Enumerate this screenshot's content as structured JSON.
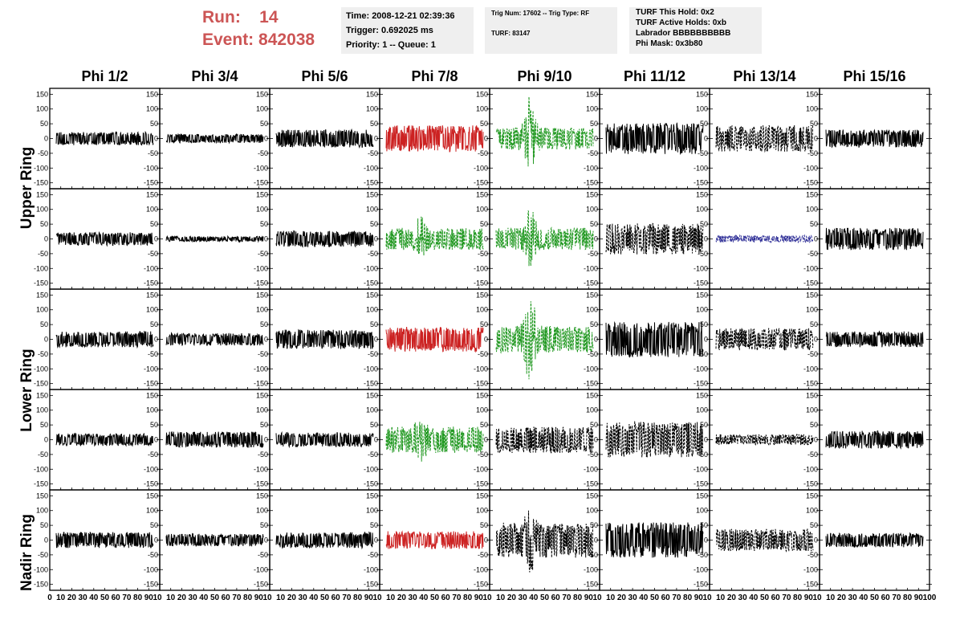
{
  "header": {
    "run_label": "Run:",
    "run_value": "14",
    "event_label": "Event:",
    "event_value": "842038"
  },
  "info_time": {
    "time": "Time: 2008-12-21 02:39:36",
    "trigger": "Trigger: 0.692025 ms",
    "priority": "Priority: 1 -- Queue: 1"
  },
  "info_trig": {
    "trig": "Trig Num: 17602 -- Trig Type: RF",
    "turf": "TURF: 83147"
  },
  "info_turf": {
    "hold": "TURF This Hold: 0x2",
    "active": "TURF Active Holds: 0xb",
    "labrador": "Labrador BBBBBBBBBB",
    "mask": "Phi Mask: 0x3b80"
  },
  "columns": [
    "Phi 1/2",
    "Phi 3/4",
    "Phi 5/6",
    "Phi 7/8",
    "Phi 9/10",
    "Phi 11/12",
    "Phi 13/14",
    "Phi 15/16"
  ],
  "rows": [
    "Upper Ring",
    "Lower Ring",
    "Nadir Ring"
  ],
  "chart_data": {
    "type": "line",
    "panel_rows": 5,
    "panel_cols": 8,
    "ylim": [
      -170,
      170
    ],
    "xlim": [
      0,
      100
    ],
    "y_ticks": [
      -150,
      -100,
      -50,
      0,
      50,
      100,
      150
    ],
    "x_ticks": [
      0,
      10,
      20,
      30,
      40,
      50,
      60,
      70,
      80,
      90,
      100
    ],
    "x_tick_labels_bottom_left": "0 10 20 30 40 50 60 70 80 90 10",
    "x_tick_labels_bottom_mid": "10 20 30 40 50 60 70 80 90 10",
    "x_tick_labels_bottom_right": "10 20 30 40 50 60 70 80 90 100",
    "colors": {
      "black": "#000000",
      "red": "#cc2222",
      "green": "#229922",
      "blue": "#333399"
    },
    "panels": [
      [
        {
          "color": "black",
          "amp": 15,
          "dash": false
        },
        {
          "color": "black",
          "amp": 10,
          "dash": false
        },
        {
          "color": "black",
          "amp": 20,
          "dash": false
        },
        {
          "color": "red",
          "amp": 30,
          "dash": false
        },
        {
          "color": "green",
          "amp": 25,
          "dash": true,
          "spike": 150
        },
        {
          "color": "black",
          "amp": 35,
          "dash": false
        },
        {
          "color": "black",
          "amp": 30,
          "dash": true
        },
        {
          "color": "black",
          "amp": 20,
          "dash": false
        }
      ],
      [
        {
          "color": "black",
          "amp": 15,
          "dash": false
        },
        {
          "color": "black",
          "amp": 6,
          "dash": false
        },
        {
          "color": "black",
          "amp": 18,
          "dash": false
        },
        {
          "color": "green",
          "amp": 25,
          "dash": true,
          "spike": 75
        },
        {
          "color": "green",
          "amp": 25,
          "dash": true,
          "spike": 110
        },
        {
          "color": "black",
          "amp": 35,
          "dash": true
        },
        {
          "color": "blue",
          "amp": 8,
          "dash": true
        },
        {
          "color": "black",
          "amp": 25,
          "dash": false
        }
      ],
      [
        {
          "color": "black",
          "amp": 18,
          "dash": false
        },
        {
          "color": "black",
          "amp": 14,
          "dash": false
        },
        {
          "color": "black",
          "amp": 22,
          "dash": false
        },
        {
          "color": "red",
          "amp": 28,
          "dash": false
        },
        {
          "color": "green",
          "amp": 30,
          "dash": true,
          "spike": 150
        },
        {
          "color": "black",
          "amp": 40,
          "dash": false
        },
        {
          "color": "black",
          "amp": 25,
          "dash": true
        },
        {
          "color": "black",
          "amp": 18,
          "dash": false
        }
      ],
      [
        {
          "color": "black",
          "amp": 14,
          "dash": false
        },
        {
          "color": "black",
          "amp": 18,
          "dash": false
        },
        {
          "color": "black",
          "amp": 16,
          "dash": false
        },
        {
          "color": "green",
          "amp": 30,
          "dash": true,
          "spike": 80
        },
        {
          "color": "black",
          "amp": 30,
          "dash": true
        },
        {
          "color": "black",
          "amp": 40,
          "dash": true
        },
        {
          "color": "black",
          "amp": 12,
          "dash": true
        },
        {
          "color": "black",
          "amp": 20,
          "dash": false
        }
      ],
      [
        {
          "color": "black",
          "amp": 18,
          "dash": false
        },
        {
          "color": "black",
          "amp": 14,
          "dash": false
        },
        {
          "color": "black",
          "amp": 18,
          "dash": false
        },
        {
          "color": "red",
          "amp": 20,
          "dash": false
        },
        {
          "color": "black",
          "amp": 40,
          "dash": true,
          "spike": 100
        },
        {
          "color": "black",
          "amp": 40,
          "dash": false
        },
        {
          "color": "black",
          "amp": 25,
          "dash": true
        },
        {
          "color": "black",
          "amp": 16,
          "dash": false
        }
      ]
    ]
  }
}
